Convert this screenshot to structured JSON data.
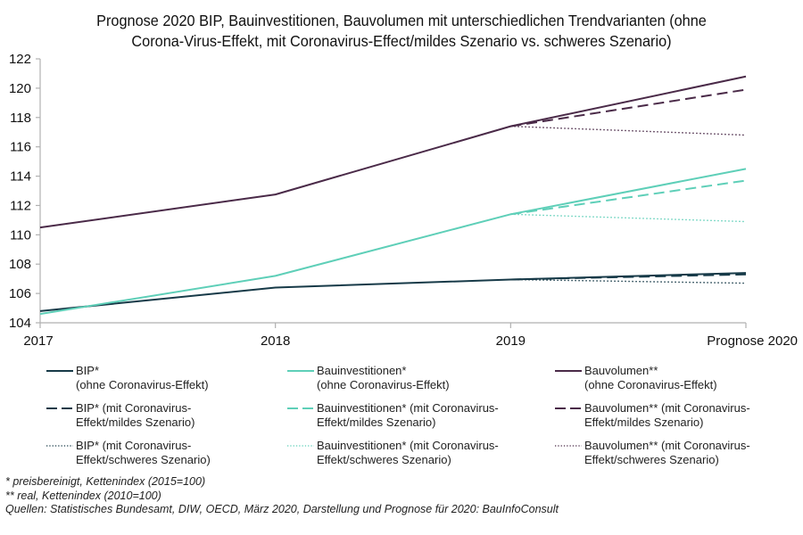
{
  "chart_data": {
    "type": "line",
    "title": "Prognose 2020 BIP, Bauinvestitionen, Bauvolumen mit unterschiedlichen Trendvarianten (ohne Corona-Virus-Effekt, mit Coronavirus-Effect/mildes Szenario vs. schweres Szenario)",
    "title_lines": [
      "Prognose 2020 BIP, Bauinvestitionen, Bauvolumen  mit unterschiedlichen  Trendvarianten (ohne",
      "Corona-Virus-Effekt,  mit Coronavirus-Effect/mildes  Szenario vs. schweres Szenario)"
    ],
    "xlabel": "",
    "ylabel": "",
    "categories": [
      "2017",
      "2018",
      "2019",
      "Prognose 2020"
    ],
    "ylim": [
      104,
      122
    ],
    "yticks": [
      104,
      106,
      108,
      110,
      112,
      114,
      116,
      118,
      120,
      122
    ],
    "grid": false,
    "legend_position": "bottom",
    "series": [
      {
        "name": "BIP* (ohne Coronavirus-Effekt)",
        "group": "BIP",
        "style": "solid",
        "color": "#173a48",
        "values": [
          104.8,
          106.4,
          106.95,
          107.4
        ]
      },
      {
        "name": "Bauinvestitionen* (ohne Coronavirus-Effekt)",
        "group": "Bauinvestitionen",
        "style": "solid",
        "color": "#5ecfb8",
        "values": [
          104.6,
          107.2,
          111.4,
          114.5
        ]
      },
      {
        "name": "Bauvolumen** (ohne Coronavirus-Effekt)",
        "group": "Bauvolumen",
        "style": "solid",
        "color": "#4a2a48",
        "values": [
          110.5,
          112.75,
          117.4,
          120.8
        ]
      },
      {
        "name": "BIP* (mit Coronavirus-Effekt/mildes Szenario)",
        "group": "BIP",
        "style": "dashed",
        "color": "#173a48",
        "values": [
          null,
          null,
          106.95,
          107.3
        ]
      },
      {
        "name": "Bauinvestitionen* (mit Coronavirus-Effekt/mildes Szenario)",
        "group": "Bauinvestitionen",
        "style": "dashed",
        "color": "#5ecfb8",
        "values": [
          null,
          null,
          111.4,
          113.7
        ]
      },
      {
        "name": "Bauvolumen** (mit Coronavirus-Effekt/mildes Szenario)",
        "group": "Bauvolumen",
        "style": "dashed",
        "color": "#4a2a48",
        "values": [
          null,
          null,
          117.4,
          119.9
        ]
      },
      {
        "name": "BIP* (mit Coronavirus-Effekt/schweres Szenario)",
        "group": "BIP",
        "style": "dotted",
        "color": "#173a48",
        "values": [
          null,
          null,
          106.95,
          106.7
        ]
      },
      {
        "name": "Bauinvestitionen* (mit Coronavirus-Effekt/schweres Szenario)",
        "group": "Bauinvestitionen",
        "style": "dotted",
        "color": "#5ecfb8",
        "values": [
          null,
          null,
          111.4,
          110.9
        ]
      },
      {
        "name": "Bauvolumen** (mit Coronavirus-Effekt/schweres Szenario)",
        "group": "Bauvolumen",
        "style": "dotted",
        "color": "#4a2a48",
        "values": [
          null,
          null,
          117.4,
          116.8
        ]
      }
    ]
  },
  "legend": [
    {
      "line1": "BIP*",
      "line2": "(ohne Coronavirus-Effekt)",
      "style": "solid",
      "color": "#173a48"
    },
    {
      "line1": "Bauinvestitionen*",
      "line2": "(ohne Coronavirus-Effekt)",
      "style": "solid",
      "color": "#5ecfb8"
    },
    {
      "line1": "Bauvolumen**",
      "line2": "(ohne Coronavirus-Effekt)",
      "style": "solid",
      "color": "#4a2a48"
    },
    {
      "line1": "BIP* (mit Coronavirus-",
      "line2": "Effekt/mildes Szenario)",
      "style": "dashed",
      "color": "#173a48"
    },
    {
      "line1": "Bauinvestitionen*  (mit Coronavirus-",
      "line2": "Effekt/mildes Szenario)",
      "style": "dashed",
      "color": "#5ecfb8"
    },
    {
      "line1": "Bauvolumen**  (mit Coronavirus-",
      "line2": "Effekt/mildes Szenario)",
      "style": "dashed",
      "color": "#4a2a48"
    },
    {
      "line1": "BIP* (mit Coronavirus-",
      "line2": "Effekt/schweres Szenario)",
      "style": "dotted",
      "color": "#173a48"
    },
    {
      "line1": "Bauinvestitionen*  (mit Coronavirus-",
      "line2": "Effekt/schweres Szenario)",
      "style": "dotted",
      "color": "#5ecfb8"
    },
    {
      "line1": "Bauvolumen**  (mit Coronavirus-",
      "line2": "Effekt/schweres Szenario)",
      "style": "dotted",
      "color": "#4a2a48"
    }
  ],
  "notes": [
    "* preisbereinigt, Kettenindex (2015=100)",
    "** real, Kettenindex (2010=100)",
    "Quellen: Statistisches Bundesamt, DIW, OECD, März 2020, Darstellung und Prognose für 2020: BauInfoConsult"
  ]
}
